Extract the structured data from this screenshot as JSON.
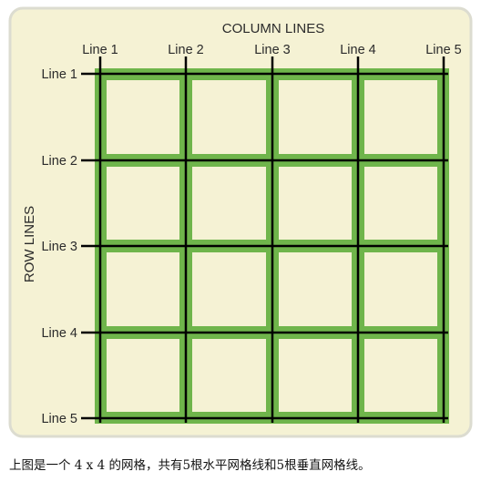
{
  "diagram": {
    "column_title": "COLUMN LINES",
    "row_title": "ROW LINES",
    "column_labels": [
      "Line 1",
      "Line 2",
      "Line 3",
      "Line 4",
      "Line 5"
    ],
    "row_labels": [
      "Line 1",
      "Line 2",
      "Line 3",
      "Line 4",
      "Line 5"
    ],
    "rows": 4,
    "columns": 4,
    "colors": {
      "panel_background": "#f5f2d4",
      "panel_border": "#dcdcd0",
      "cell_fill": "#f5f2d4",
      "gap_fill": "#6fb54b",
      "line_color": "#000000"
    }
  },
  "caption": "上图是一个 4 x 4 的网格，共有5根水平网格线和5根垂直网格线。"
}
